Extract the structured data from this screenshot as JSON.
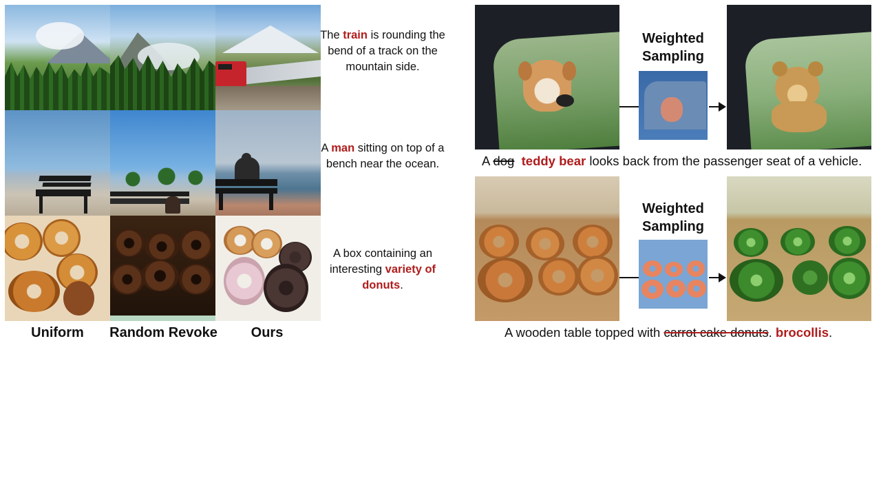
{
  "grid": {
    "column_labels": [
      "Uniform",
      "Random Revoke",
      "Ours"
    ],
    "captions": [
      {
        "pre": "The ",
        "highlight": "train",
        "post": " is rounding the bend of a track on the mountain side."
      },
      {
        "pre": "A ",
        "highlight": "man",
        "post": " sitting on top of a bench near the ocean."
      },
      {
        "pre": "A box containing an interesting ",
        "highlight": "variety of donuts",
        "post": "."
      }
    ]
  },
  "editing": {
    "weighted_sampling_label": "Weighted Sampling",
    "examples": [
      {
        "pre": "A ",
        "struck": "dog",
        "replacement": "teddy bear",
        "post": " looks back from the passenger seat of a vehicle."
      },
      {
        "pre": "A wooden table topped with ",
        "struck": "carrot cake donuts",
        "dot": ".",
        "replacement": "brocollis",
        "post": "."
      }
    ]
  },
  "colors": {
    "highlight": "#b01c1c"
  }
}
